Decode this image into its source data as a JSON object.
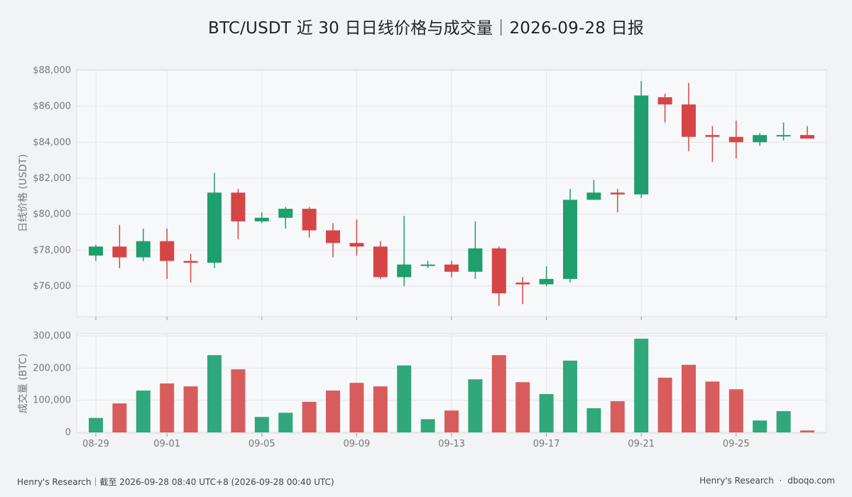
{
  "title": "BTC/USDT 近 30 日日线价格与成交量｜2026-09-28 日报",
  "footer": {
    "left": "Henry's Research｜截至 2026-09-28 08:40 UTC+8 (2026-09-28 00:40 UTC)",
    "right_brand": "Henry's Research",
    "right_sep": "·",
    "right_site": "dboqo.com"
  },
  "colors": {
    "up": "#1f9e6e",
    "down": "#d64545",
    "up_vol": "#30a87c",
    "down_vol": "#d95c5c",
    "panel_bg": "#f7f8fa",
    "grid": "#e3e5e8"
  },
  "chart_data": [
    {
      "type": "candlestick",
      "ylabel": "日线价格 (USDT)",
      "ylim": [
        74500,
        88000
      ],
      "yticks": [
        76000,
        78000,
        80000,
        82000,
        84000,
        86000,
        88000
      ],
      "ytick_labels": [
        "$76,000",
        "$78,000",
        "$80,000",
        "$82,000",
        "$84,000",
        "$86,000",
        "$88,000"
      ],
      "grid": true,
      "dates": [
        "08-29",
        "08-30",
        "08-31",
        "09-01",
        "09-02",
        "09-03",
        "09-04",
        "09-05",
        "09-06",
        "09-07",
        "09-08",
        "09-09",
        "09-10",
        "09-11",
        "09-12",
        "09-13",
        "09-14",
        "09-15",
        "09-16",
        "09-17",
        "09-18",
        "09-19",
        "09-20",
        "09-21",
        "09-22",
        "09-23",
        "09-24",
        "09-25",
        "09-26",
        "09-27",
        "09-28"
      ],
      "open": [
        77700,
        78200,
        77600,
        78500,
        77400,
        77300,
        81200,
        79600,
        79800,
        80300,
        79100,
        78400,
        78200,
        76500,
        77150,
        77200,
        76800,
        78100,
        76200,
        76100,
        76400,
        80800,
        81200,
        81100,
        86500,
        86100,
        84400,
        84300,
        84000,
        84400,
        84400
      ],
      "high": [
        78300,
        79400,
        79200,
        79200,
        77800,
        82300,
        81400,
        80100,
        80400,
        80400,
        79500,
        79700,
        78500,
        79900,
        77400,
        77400,
        79600,
        78200,
        76500,
        77100,
        81400,
        81900,
        81400,
        87400,
        86700,
        87300,
        84900,
        85200,
        84500,
        85100,
        84900
      ],
      "low": [
        77400,
        77000,
        77400,
        76400,
        76200,
        77000,
        78600,
        79500,
        79200,
        78700,
        77600,
        77700,
        76400,
        76000,
        77000,
        76500,
        76400,
        74900,
        75000,
        76000,
        76200,
        80800,
        80100,
        80900,
        85100,
        83500,
        82900,
        83100,
        83800,
        84100,
        84200
      ],
      "close": [
        78200,
        77600,
        78500,
        77400,
        77300,
        81200,
        79600,
        79800,
        80300,
        79100,
        78400,
        78200,
        76500,
        77200,
        77200,
        76800,
        78100,
        75600,
        76100,
        76400,
        80800,
        81200,
        81100,
        86600,
        86100,
        84300,
        84300,
        84000,
        84400,
        84400,
        84200
      ]
    },
    {
      "type": "bar",
      "ylabel": "成交量 (BTC)",
      "ylim": [
        0,
        300000
      ],
      "yticks": [
        0,
        100000,
        200000,
        300000
      ],
      "ytick_labels": [
        "0",
        "100,000",
        "200,000",
        "300,000"
      ],
      "xtick_labels": [
        "08-29",
        "09-01",
        "09-05",
        "09-09",
        "09-13",
        "09-17",
        "09-21",
        "09-25"
      ],
      "grid": true,
      "values": [
        45000,
        90000,
        130000,
        152000,
        143000,
        240000,
        196000,
        48000,
        61000,
        95000,
        130000,
        154000,
        143000,
        208000,
        41000,
        68000,
        165000,
        240000,
        156000,
        119000,
        223000,
        75000,
        97000,
        291000,
        170000,
        210000,
        158000,
        134000,
        37000,
        66000,
        6000
      ]
    }
  ]
}
